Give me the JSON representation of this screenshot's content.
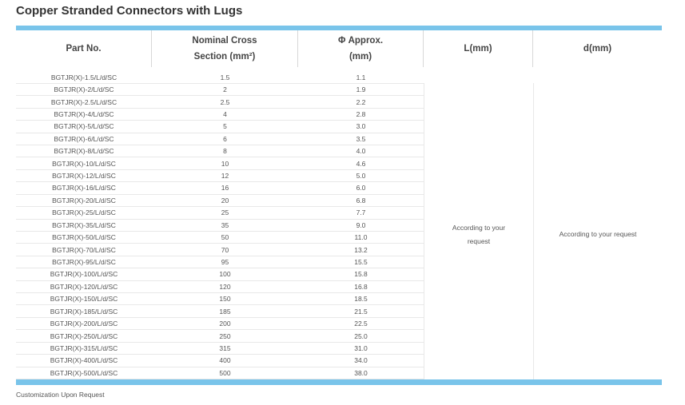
{
  "header": {
    "title": "Copper Stranded Connectors with Lugs"
  },
  "table": {
    "columns": [
      "Part No.",
      "Nominal Cross Section (mm²)",
      "Φ Approx. (mm)",
      "L(mm)",
      "d(mm)"
    ],
    "rows": [
      [
        "BGTJR(X)-1.5/L/d/SC",
        "1.5",
        "1.1"
      ],
      [
        "BGTJR(X)-2/L/d/SC",
        "2",
        "1.9"
      ],
      [
        "BGTJR(X)-2.5/L/d/SC",
        "2.5",
        "2.2"
      ],
      [
        "BGTJR(X)-4/L/d/SC",
        "4",
        "2.8"
      ],
      [
        "BGTJR(X)-5/L/d/SC",
        "5",
        "3.0"
      ],
      [
        "BGTJR(X)-6/L/d/SC",
        "6",
        "3.5"
      ],
      [
        "BGTJR(X)-8/L/d/SC",
        "8",
        "4.0"
      ],
      [
        "BGTJR(X)-10/L/d/SC",
        "10",
        "4.6"
      ],
      [
        "BGTJR(X)-12/L/d/SC",
        "12",
        "5.0"
      ],
      [
        "BGTJR(X)-16/L/d/SC",
        "16",
        "6.0"
      ],
      [
        "BGTJR(X)-20/L/d/SC",
        "20",
        "6.8"
      ],
      [
        "BGTJR(X)-25/L/d/SC",
        "25",
        "7.7"
      ],
      [
        "BGTJR(X)-35/L/d/SC",
        "35",
        "9.0"
      ],
      [
        "BGTJR(X)-50/L/d/SC",
        "50",
        "11.0"
      ],
      [
        "BGTJR(X)-70/L/d/SC",
        "70",
        "13.2"
      ],
      [
        "BGTJR(X)-95/L/d/SC",
        "95",
        "15.5"
      ],
      [
        "BGTJR(X)-100/L/d/SC",
        "100",
        "15.8"
      ],
      [
        "BGTJR(X)-120/L/d/SC",
        "120",
        "16.8"
      ],
      [
        "BGTJR(X)-150/L/d/SC",
        "150",
        "18.5"
      ],
      [
        "BGTJR(X)-185/L/d/SC",
        "185",
        "21.5"
      ],
      [
        "BGTJR(X)-200/L/d/SC",
        "200",
        "22.5"
      ],
      [
        "BGTJR(X)-250/L/d/SC",
        "250",
        "25.0"
      ],
      [
        "BGTJR(X)-315/L/d/SC",
        "315",
        "31.0"
      ],
      [
        "BGTJR(X)-400/L/d/SC",
        "400",
        "34.0"
      ],
      [
        "BGTJR(X)-500/L/d/SC",
        "500",
        "38.0"
      ]
    ],
    "l_note": "According to your request",
    "d_note": "According to your request"
  },
  "footer": {
    "note": "Customization Upon Request"
  }
}
